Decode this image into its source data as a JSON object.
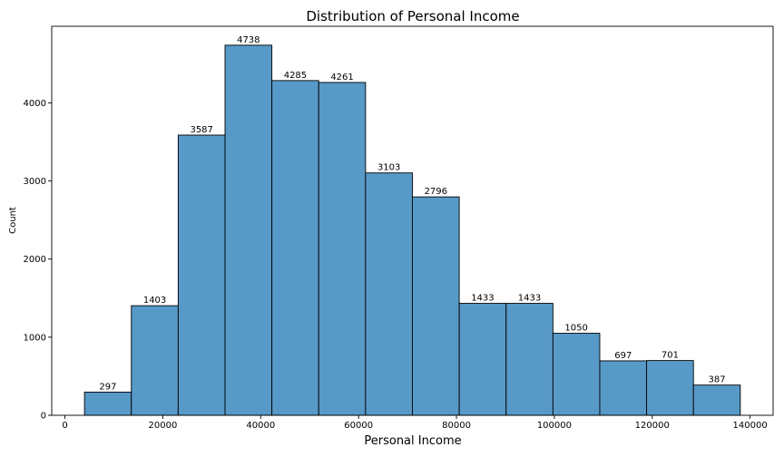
{
  "chart_data": {
    "type": "bar",
    "title": "Distribution of Personal Income",
    "xlabel": "Personal Income",
    "ylabel": "Count",
    "bin_edges": [
      4000,
      13571,
      23142,
      32713,
      42284,
      51855,
      61426,
      70997,
      80568,
      90139,
      99710,
      109281,
      118852,
      128423,
      137994
    ],
    "values": [
      297,
      1403,
      3587,
      4738,
      4285,
      4261,
      3103,
      2796,
      1433,
      1433,
      1050,
      697,
      701,
      387
    ],
    "data_labels": [
      "297",
      "1403",
      "3587",
      "4738",
      "4285",
      "4261",
      "3103",
      "2796",
      "1433",
      "1433",
      "1050",
      "697",
      "701",
      "387"
    ],
    "xlim": [
      -2700,
      144700
    ],
    "ylim": [
      0,
      4980
    ],
    "xticks": [
      0,
      20000,
      40000,
      60000,
      80000,
      100000,
      120000,
      140000
    ],
    "xtick_labels": [
      "0",
      "20000",
      "40000",
      "60000",
      "80000",
      "100000",
      "120000",
      "140000"
    ],
    "yticks": [
      0,
      1000,
      2000,
      3000,
      4000
    ],
    "ytick_labels": [
      "0",
      "1000",
      "2000",
      "3000",
      "4000"
    ],
    "grid": false,
    "bar_color": "#5799c7"
  }
}
